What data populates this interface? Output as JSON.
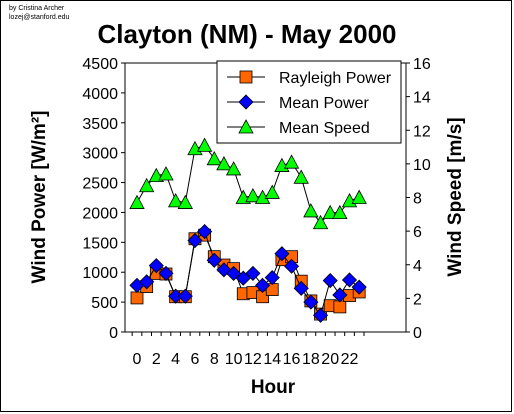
{
  "credit": {
    "line1": "by Cristina Archer",
    "line2": "lozej@stanford.edu"
  },
  "colors": {
    "rayleigh": "#ff6600",
    "mean_power": "#0000ff",
    "mean_speed": "#00ff00",
    "line": "#000000",
    "background": "#ffffff"
  },
  "chart_data": {
    "type": "line",
    "title": "Clayton (NM) - May 2000",
    "xlabel": "Hour",
    "ylabel": "Wind Power [W/m²]",
    "y2label": "Wind Speed [m/s]",
    "xlim": [
      0,
      23
    ],
    "ylim": [
      0,
      4500
    ],
    "y2lim": [
      0,
      16
    ],
    "x": [
      0,
      1,
      2,
      3,
      4,
      5,
      6,
      7,
      8,
      9,
      10,
      11,
      12,
      13,
      14,
      15,
      16,
      17,
      18,
      19,
      20,
      21,
      22,
      23
    ],
    "x_ticks": [
      "0",
      "2",
      "4",
      "6",
      "8",
      "10",
      "12",
      "14",
      "16",
      "18",
      "20",
      "22"
    ],
    "y_ticks": [
      "0",
      "500",
      "1000",
      "1500",
      "2000",
      "2500",
      "3000",
      "3500",
      "4000",
      "4500"
    ],
    "y2_ticks": [
      "0",
      "2",
      "4",
      "6",
      "8",
      "10",
      "12",
      "14",
      "16"
    ],
    "legend": "top-right",
    "grid": false,
    "series": [
      {
        "name": "Rayleigh Power",
        "axis": "left",
        "marker": "square",
        "values": [
          570,
          760,
          980,
          970,
          590,
          590,
          1560,
          1620,
          1260,
          1120,
          1060,
          640,
          660,
          590,
          710,
          1210,
          1260,
          850,
          520,
          300,
          440,
          420,
          610,
          670
        ]
      },
      {
        "name": "Mean Power",
        "axis": "left",
        "marker": "diamond",
        "values": [
          780,
          840,
          1110,
          980,
          600,
          600,
          1530,
          1680,
          1200,
          1040,
          980,
          900,
          980,
          780,
          910,
          1310,
          1100,
          730,
          500,
          280,
          860,
          620,
          870,
          750
        ]
      },
      {
        "name": "Mean Speed",
        "axis": "right",
        "marker": "triangle",
        "values": [
          7.7,
          8.7,
          9.3,
          9.4,
          7.8,
          7.7,
          10.9,
          11.1,
          10.3,
          10.0,
          9.7,
          8.0,
          8.1,
          8.0,
          8.3,
          9.9,
          10.1,
          9.2,
          7.2,
          6.5,
          7.1,
          7.1,
          7.8,
          8.0
        ]
      }
    ]
  }
}
